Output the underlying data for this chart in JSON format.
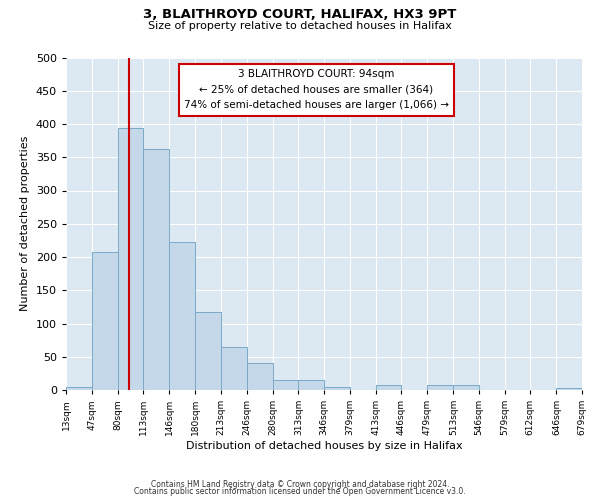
{
  "title": "3, BLAITHROYD COURT, HALIFAX, HX3 9PT",
  "subtitle": "Size of property relative to detached houses in Halifax",
  "xlabel": "Distribution of detached houses by size in Halifax",
  "ylabel": "Number of detached properties",
  "bar_color": "#c5d8ea",
  "bar_edge_color": "#7aaac8",
  "bg_color": "#dce8f2",
  "fig_color": "#ffffff",
  "annotation_box_color": "#cc0000",
  "vline_color": "#cc0000",
  "vline_x": 94,
  "annotation_title": "3 BLAITHROYD COURT: 94sqm",
  "annotation_line1": "← 25% of detached houses are smaller (364)",
  "annotation_line2": "74% of semi-detached houses are larger (1,066) →",
  "bin_edges": [
    13,
    47,
    80,
    113,
    146,
    180,
    213,
    246,
    280,
    313,
    346,
    379,
    413,
    446,
    479,
    513,
    546,
    579,
    612,
    646,
    679
  ],
  "bin_labels": [
    "13sqm",
    "47sqm",
    "80sqm",
    "113sqm",
    "146sqm",
    "180sqm",
    "213sqm",
    "246sqm",
    "280sqm",
    "313sqm",
    "346sqm",
    "379sqm",
    "413sqm",
    "446sqm",
    "479sqm",
    "513sqm",
    "546sqm",
    "579sqm",
    "612sqm",
    "646sqm",
    "679sqm"
  ],
  "counts": [
    5,
    207,
    394,
    362,
    222,
    117,
    64,
    41,
    15,
    15,
    5,
    0,
    8,
    0,
    8,
    8,
    0,
    0,
    0,
    3
  ],
  "ylim": [
    0,
    500
  ],
  "yticks": [
    0,
    50,
    100,
    150,
    200,
    250,
    300,
    350,
    400,
    450,
    500
  ],
  "footer1": "Contains HM Land Registry data © Crown copyright and database right 2024.",
  "footer2": "Contains public sector information licensed under the Open Government Licence v3.0."
}
